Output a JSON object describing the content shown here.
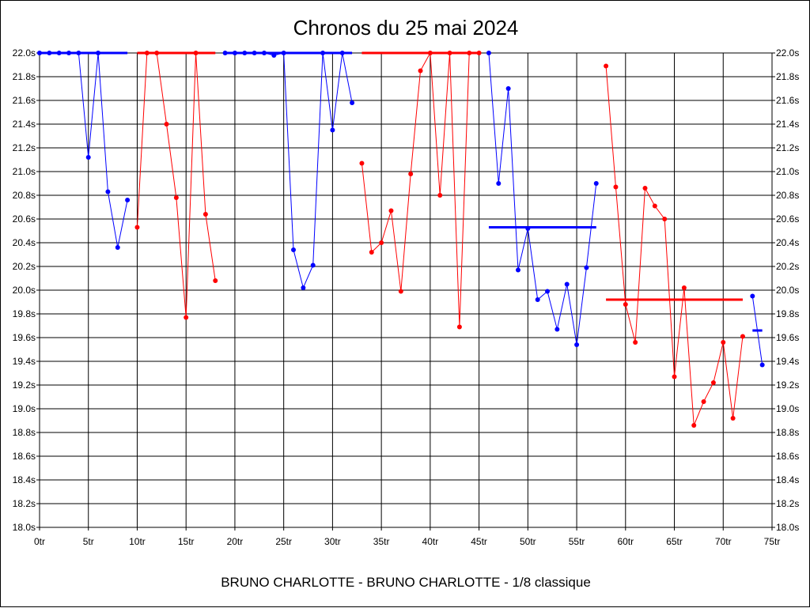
{
  "chart_data": {
    "type": "line",
    "title": "Chronos du 25 mai 2024",
    "subtitle": "BRUNO CHARLOTTE - BRUNO CHARLOTTE - 1/8 classique",
    "xlim": [
      0,
      75
    ],
    "ylim": [
      18.0,
      22.0
    ],
    "x_ticks": [
      0,
      5,
      10,
      15,
      20,
      25,
      30,
      35,
      40,
      45,
      50,
      55,
      60,
      65,
      70,
      75
    ],
    "x_tick_labels": [
      "0tr",
      "5tr",
      "10tr",
      "15tr",
      "20tr",
      "25tr",
      "30tr",
      "35tr",
      "40tr",
      "45tr",
      "50tr",
      "55tr",
      "60tr",
      "65tr",
      "70tr",
      "75tr"
    ],
    "y_ticks": [
      18.0,
      18.2,
      18.4,
      18.6,
      18.8,
      19.0,
      19.2,
      19.4,
      19.6,
      19.8,
      20.0,
      20.2,
      20.4,
      20.6,
      20.8,
      21.0,
      21.2,
      21.4,
      21.6,
      21.8,
      22.0
    ],
    "y_tick_labels": [
      "18.0s",
      "18.2s",
      "18.4s",
      "18.6s",
      "18.8s",
      "19.0s",
      "19.2s",
      "19.4s",
      "19.6s",
      "19.8s",
      "20.0s",
      "20.2s",
      "20.4s",
      "20.6s",
      "20.8s",
      "21.0s",
      "21.2s",
      "21.4s",
      "21.6s",
      "21.8s",
      "22.0s"
    ],
    "y_axis_both_sides": true,
    "grid": true,
    "series": [
      {
        "color": "#0000ff",
        "points": [
          [
            0,
            22.0
          ],
          [
            1,
            22.0
          ],
          [
            2,
            22.0
          ],
          [
            3,
            22.0
          ],
          [
            4,
            22.0
          ],
          [
            5,
            21.12
          ],
          [
            6,
            22.0
          ],
          [
            7,
            20.83
          ],
          [
            8,
            20.36
          ],
          [
            9,
            20.76
          ]
        ],
        "mean": {
          "value": 22.0,
          "x_from": 0,
          "x_to": 9
        }
      },
      {
        "color": "#ff0000",
        "points": [
          [
            10,
            20.53
          ],
          [
            11,
            22.0
          ],
          [
            12,
            22.0
          ],
          [
            13,
            21.4
          ],
          [
            14,
            20.78
          ],
          [
            15,
            19.77
          ],
          [
            16,
            22.0
          ],
          [
            17,
            20.64
          ],
          [
            18,
            20.08
          ]
        ],
        "mean": {
          "value": 22.0,
          "x_from": 10,
          "x_to": 18
        }
      },
      {
        "color": "#0000ff",
        "points": [
          [
            19,
            22.0
          ],
          [
            20,
            22.0
          ],
          [
            21,
            22.0
          ],
          [
            22,
            22.0
          ],
          [
            23,
            22.0
          ],
          [
            24,
            21.98
          ],
          [
            25,
            22.0
          ],
          [
            26,
            20.34
          ],
          [
            27,
            20.02
          ],
          [
            28,
            20.21
          ],
          [
            29,
            22.0
          ],
          [
            30,
            21.35
          ],
          [
            31,
            22.0
          ],
          [
            32,
            21.58
          ]
        ],
        "mean": {
          "value": 22.0,
          "x_from": 19,
          "x_to": 32
        }
      },
      {
        "color": "#ff0000",
        "points": [
          [
            33,
            21.07
          ],
          [
            34,
            20.32
          ],
          [
            35,
            20.4
          ],
          [
            36,
            20.67
          ],
          [
            37,
            19.99
          ],
          [
            38,
            20.98
          ],
          [
            39,
            21.85
          ],
          [
            40,
            22.0
          ],
          [
            41,
            20.8
          ],
          [
            42,
            22.0
          ],
          [
            43,
            19.69
          ],
          [
            44,
            22.0
          ],
          [
            45,
            22.0
          ]
        ],
        "mean": {
          "value": 22.0,
          "x_from": 33,
          "x_to": 45
        }
      },
      {
        "color": "#0000ff",
        "points": [
          [
            46,
            22.0
          ],
          [
            47,
            20.9
          ],
          [
            48,
            21.7
          ],
          [
            49,
            20.17
          ],
          [
            50,
            20.52
          ],
          [
            51,
            19.92
          ],
          [
            52,
            19.99
          ],
          [
            53,
            19.67
          ],
          [
            54,
            20.05
          ],
          [
            55,
            19.54
          ],
          [
            56,
            20.19
          ],
          [
            57,
            20.9
          ]
        ],
        "mean": {
          "value": 20.53,
          "x_from": 46,
          "x_to": 57
        }
      },
      {
        "color": "#ff0000",
        "points": [
          [
            58,
            21.89
          ],
          [
            59,
            20.87
          ],
          [
            60,
            19.88
          ],
          [
            61,
            19.56
          ],
          [
            62,
            20.86
          ],
          [
            63,
            20.71
          ],
          [
            64,
            20.6
          ],
          [
            65,
            19.27
          ],
          [
            66,
            20.02
          ],
          [
            67,
            18.86
          ],
          [
            68,
            19.06
          ],
          [
            69,
            19.22
          ],
          [
            70,
            19.56
          ],
          [
            71,
            18.92
          ],
          [
            72,
            19.61
          ]
        ],
        "mean": {
          "value": 19.92,
          "x_from": 58,
          "x_to": 72
        }
      },
      {
        "color": "#0000ff",
        "points": [
          [
            73,
            19.95
          ],
          [
            74,
            19.37
          ]
        ],
        "mean": {
          "value": 19.66,
          "x_from": 73,
          "x_to": 74
        }
      }
    ]
  }
}
